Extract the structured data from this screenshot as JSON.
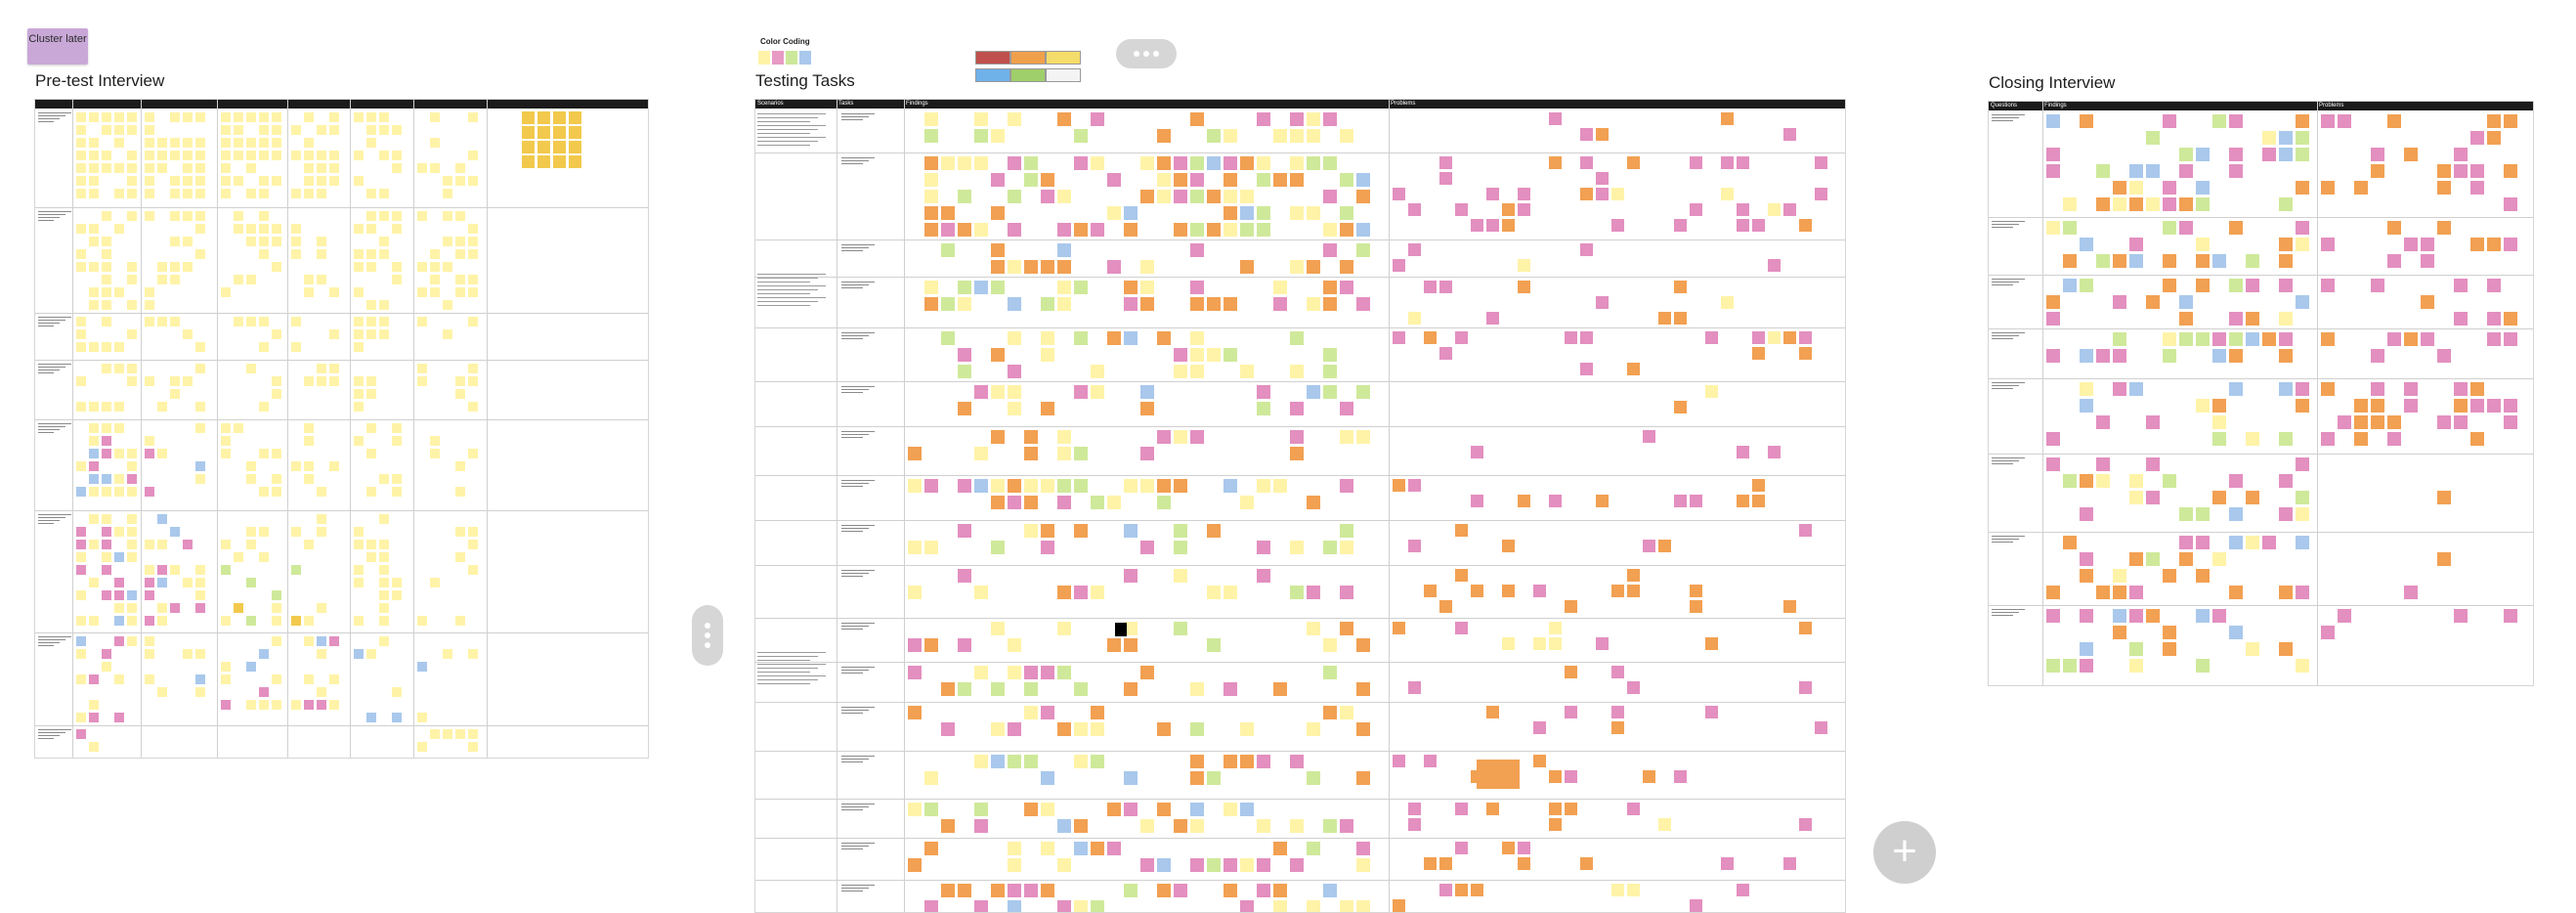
{
  "sticky": {
    "label": "Cluster later"
  },
  "frames": {
    "pretest": {
      "title": "Pre-test Interview"
    },
    "testing": {
      "title": "Testing Tasks",
      "columns": [
        "Scenarios",
        "Tasks",
        "Findings",
        "Problems"
      ]
    },
    "closing": {
      "title": "Closing Interview",
      "columns": [
        "Questions",
        "Findings",
        "Problems"
      ]
    }
  },
  "color_coding": {
    "title": "Color Coding",
    "swatches": [
      "#fff3a8",
      "#e89ac4",
      "#cbe89a",
      "#a9c8ec"
    ],
    "legend": [
      {
        "color": "#c0504d"
      },
      {
        "color": "#f0a04b"
      },
      {
        "color": "#f4dd6a"
      },
      {
        "color": "#6fb1ea"
      },
      {
        "color": "#9fcf6a"
      },
      {
        "color": "#f4f4f4"
      }
    ]
  },
  "colors": {
    "yellow": "#fff3a8",
    "dark_yellow": "#f2c94c",
    "pink": "#e38fbf",
    "green": "#cfe99a",
    "blue": "#a9c8ec",
    "orange": "#f2a052"
  },
  "icons": {
    "menu_pill": "more-horizontal-icon",
    "side_pill": "more-vertical-icon",
    "add_button": "plus-icon"
  }
}
